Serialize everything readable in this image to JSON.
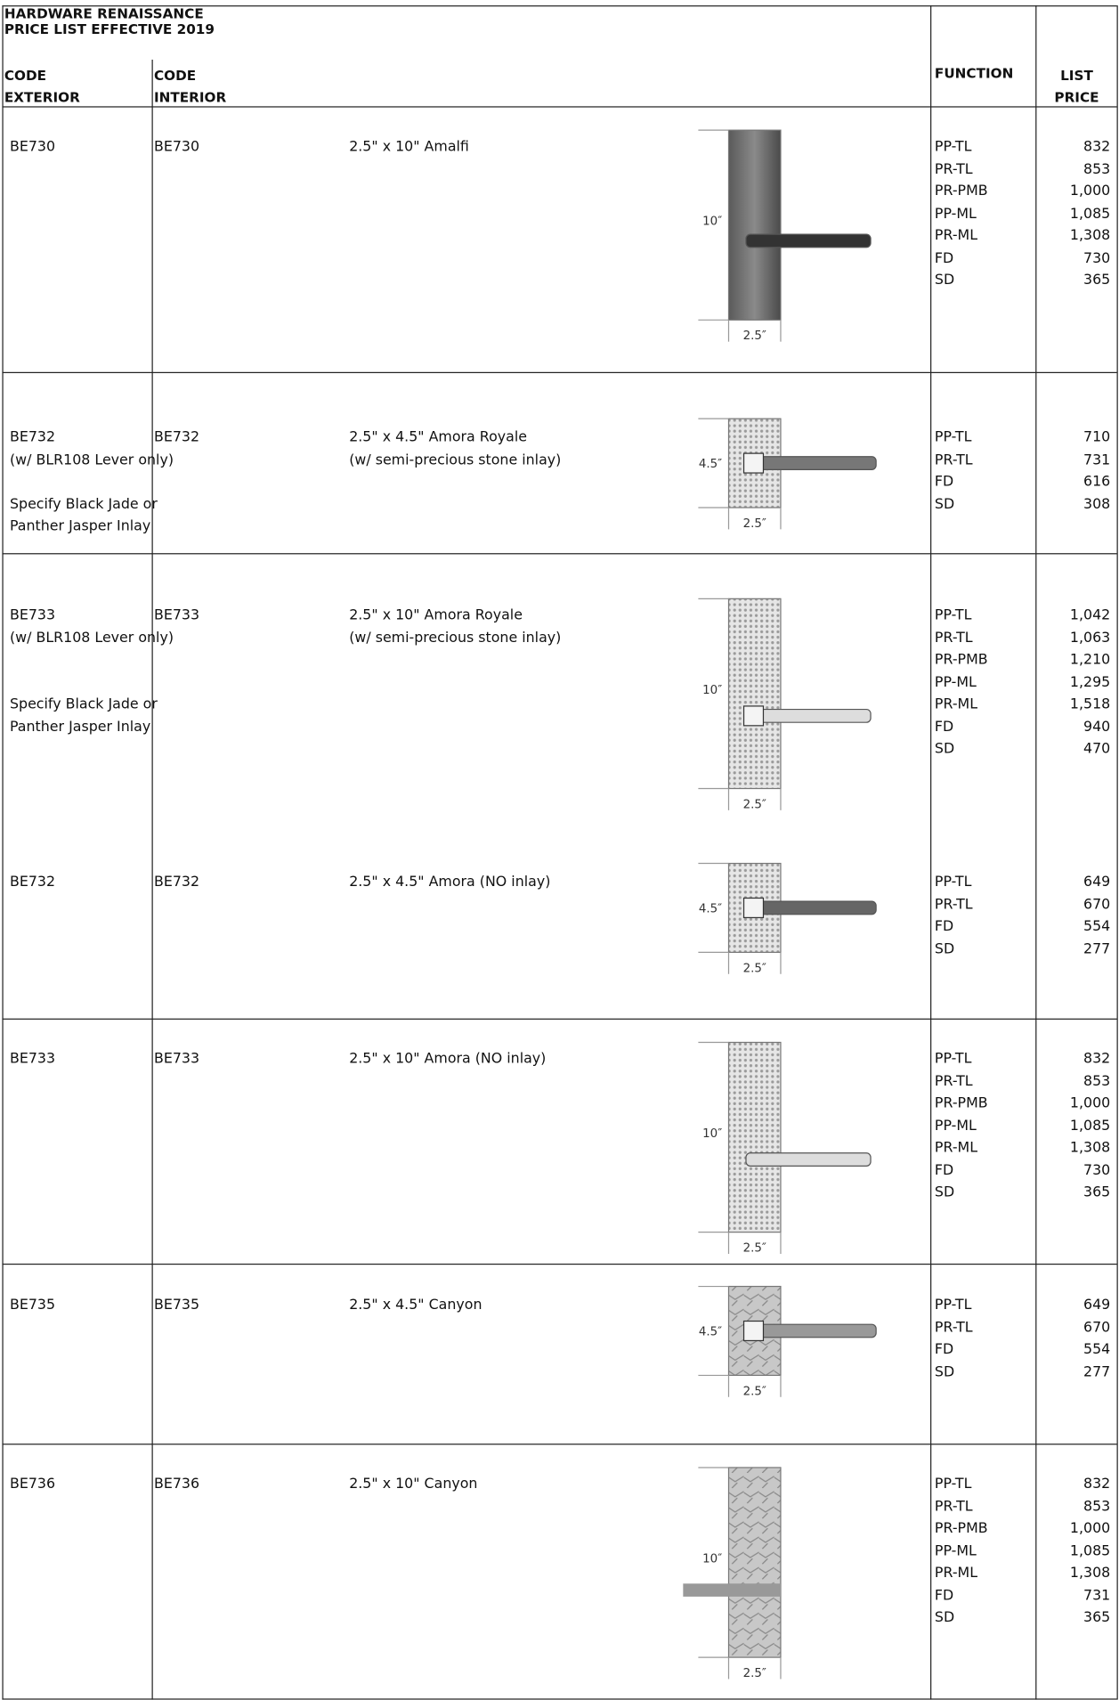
{
  "header": {
    "title": [
      "HARDWARE RENAISSANCE",
      "PRICE LIST EFFECTIVE 2019"
    ],
    "code_exterior": [
      "CODE",
      "EXTERIOR"
    ],
    "code_interior": [
      "CODE",
      "INTERIOR"
    ],
    "function": "FUNCTION",
    "list_price": [
      "LIST",
      "PRICE"
    ]
  },
  "rows": [
    {
      "code_exterior": "BE730",
      "code_interior": "BE730",
      "notes": [],
      "description": [
        "2.5\" x 10\" Amalfi"
      ],
      "image": {
        "height_label": "10″",
        "width_label": "2.5″"
      },
      "functions": [
        "PP-TL",
        "PR-TL",
        "PR-PMB",
        "PP-ML",
        "PR-ML",
        "FD",
        "SD"
      ],
      "prices": [
        "832",
        "853",
        "1,000",
        "1,085",
        "1,308",
        "730",
        "365"
      ]
    },
    {
      "code_exterior": "BE732",
      "code_interior": "BE732",
      "notes": [
        "(w/ BLR108 Lever only)",
        "Specify Black Jade or",
        "Panther Jasper Inlay"
      ],
      "description": [
        "2.5\" x 4.5\" Amora Royale",
        "(w/ semi-precious stone inlay)"
      ],
      "image": {
        "height_label": "4.5″",
        "width_label": "2.5″"
      },
      "functions": [
        "PP-TL",
        "PR-TL",
        "FD",
        "SD"
      ],
      "prices": [
        "710",
        "731",
        "616",
        "308"
      ]
    },
    {
      "code_exterior": "BE733",
      "code_interior": "BE733",
      "notes": [
        "(w/ BLR108 Lever only)",
        "Specify Black Jade or",
        "Panther Jasper Inlay"
      ],
      "description": [
        "2.5\" x 10\" Amora Royale",
        "(w/ semi-precious stone inlay)"
      ],
      "image": {
        "height_label": "10″",
        "width_label": "2.5″"
      },
      "functions": [
        "PP-TL",
        "PR-TL",
        "PR-PMB",
        "PP-ML",
        "PR-ML",
        "FD",
        "SD"
      ],
      "prices": [
        "1,042",
        "1,063",
        "1,210",
        "1,295",
        "1,518",
        "940",
        "470"
      ]
    },
    {
      "code_exterior": "BE732",
      "code_interior": "BE732",
      "notes": [],
      "description": [
        "2.5\" x 4.5\" Amora (NO inlay)"
      ],
      "image": {
        "height_label": "4.5″",
        "width_label": "2.5″"
      },
      "functions": [
        "PP-TL",
        "PR-TL",
        "FD",
        "SD"
      ],
      "prices": [
        "649",
        "670",
        "554",
        "277"
      ]
    },
    {
      "code_exterior": "BE733",
      "code_interior": "BE733",
      "notes": [],
      "description": [
        "2.5\" x 10\" Amora (NO inlay)"
      ],
      "image": {
        "height_label": "10″",
        "width_label": "2.5″"
      },
      "functions": [
        "PP-TL",
        "PR-TL",
        "PR-PMB",
        "PP-ML",
        "PR-ML",
        "FD",
        "SD"
      ],
      "prices": [
        "832",
        "853",
        "1,000",
        "1,085",
        "1,308",
        "730",
        "365"
      ]
    },
    {
      "code_exterior": "BE735",
      "code_interior": "BE735",
      "notes": [],
      "description": [
        "2.5\" x 4.5\" Canyon"
      ],
      "image": {
        "height_label": "4.5″",
        "width_label": "2.5″"
      },
      "functions": [
        "PP-TL",
        "PR-TL",
        "FD",
        "SD"
      ],
      "prices": [
        "649",
        "670",
        "554",
        "277"
      ]
    },
    {
      "code_exterior": "BE736",
      "code_interior": "BE736",
      "notes": [],
      "description": [
        "2.5\" x 10\" Canyon"
      ],
      "image": {
        "height_label": "10″",
        "width_label": "2.5″"
      },
      "functions": [
        "PP-TL",
        "PR-TL",
        "PR-PMB",
        "PP-ML",
        "PR-ML",
        "FD",
        "SD"
      ],
      "prices": [
        "832",
        "853",
        "1,000",
        "1,085",
        "1,308",
        "731",
        "365"
      ]
    }
  ]
}
